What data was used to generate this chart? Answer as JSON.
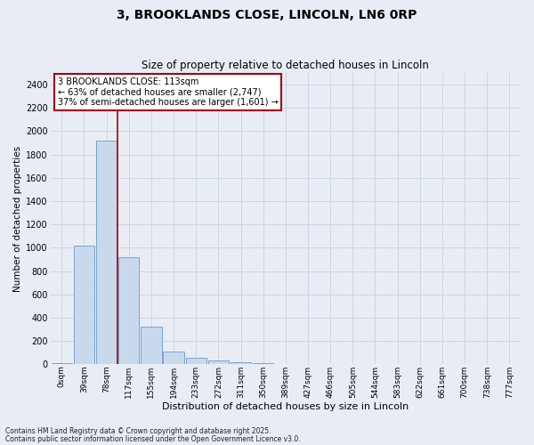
{
  "title1": "3, BROOKLANDS CLOSE, LINCOLN, LN6 0RP",
  "title2": "Size of property relative to detached houses in Lincoln",
  "xlabel": "Distribution of detached houses by size in Lincoln",
  "ylabel": "Number of detached properties",
  "bar_labels": [
    "0sqm",
    "39sqm",
    "78sqm",
    "117sqm",
    "155sqm",
    "194sqm",
    "233sqm",
    "272sqm",
    "311sqm",
    "350sqm",
    "389sqm",
    "427sqm",
    "466sqm",
    "505sqm",
    "544sqm",
    "583sqm",
    "622sqm",
    "661sqm",
    "700sqm",
    "738sqm",
    "777sqm"
  ],
  "bar_values": [
    10,
    1020,
    1920,
    920,
    320,
    110,
    55,
    30,
    18,
    8,
    3,
    0,
    0,
    0,
    0,
    0,
    0,
    0,
    0,
    0,
    0
  ],
  "bar_color": "#c9d9ed",
  "bar_edge_color": "#7aa3cc",
  "grid_color": "#cdd5e0",
  "background_color": "#e8edf5",
  "vline_color": "#aa0000",
  "annotation_text": "3 BROOKLANDS CLOSE: 113sqm\n← 63% of detached houses are smaller (2,747)\n37% of semi-detached houses are larger (1,601) →",
  "annotation_box_color": "#ffffff",
  "annotation_box_edge": "#aa0000",
  "ylim": [
    0,
    2500
  ],
  "yticks": [
    0,
    200,
    400,
    600,
    800,
    1000,
    1200,
    1400,
    1600,
    1800,
    2000,
    2200,
    2400
  ],
  "footnote1": "Contains HM Land Registry data © Crown copyright and database right 2025.",
  "footnote2": "Contains public sector information licensed under the Open Government Licence v3.0.",
  "vline_bar_index": 2
}
